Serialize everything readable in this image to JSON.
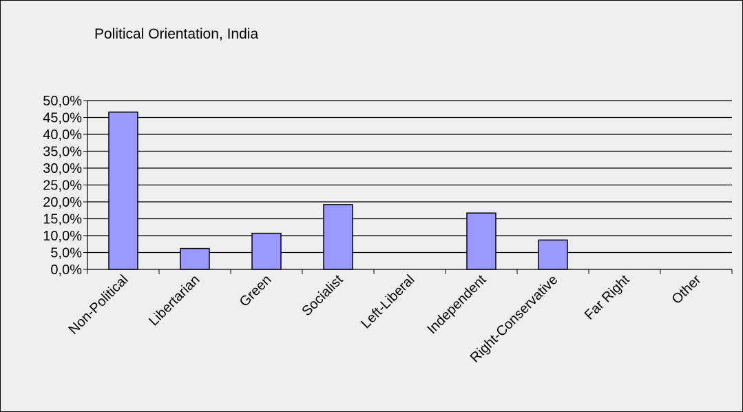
{
  "chart_data": {
    "type": "bar",
    "title": "Political Orientation, India",
    "xlabel": "",
    "ylabel": "",
    "categories": [
      "Non-Political",
      "Libertarian",
      "Green",
      "Socialist",
      "Left-Liberal",
      "Independent",
      "Right-Conservative",
      "Far Right",
      "Other"
    ],
    "values": [
      46.6,
      6.2,
      10.7,
      19.2,
      0,
      16.7,
      8.7,
      0,
      0
    ],
    "ylim": [
      0,
      50
    ],
    "yticks": [
      "0,0%",
      "5,0%",
      "10,0%",
      "15,0%",
      "20,0%",
      "25,0%",
      "30,0%",
      "35,0%",
      "40,0%",
      "45,0%",
      "50,0%"
    ],
    "grid": true,
    "legend": "none",
    "colors": {
      "bar_fill": "#9999ff",
      "bar_stroke": "#000000",
      "plot_background": "#efefef",
      "gridline": "#000000"
    }
  }
}
